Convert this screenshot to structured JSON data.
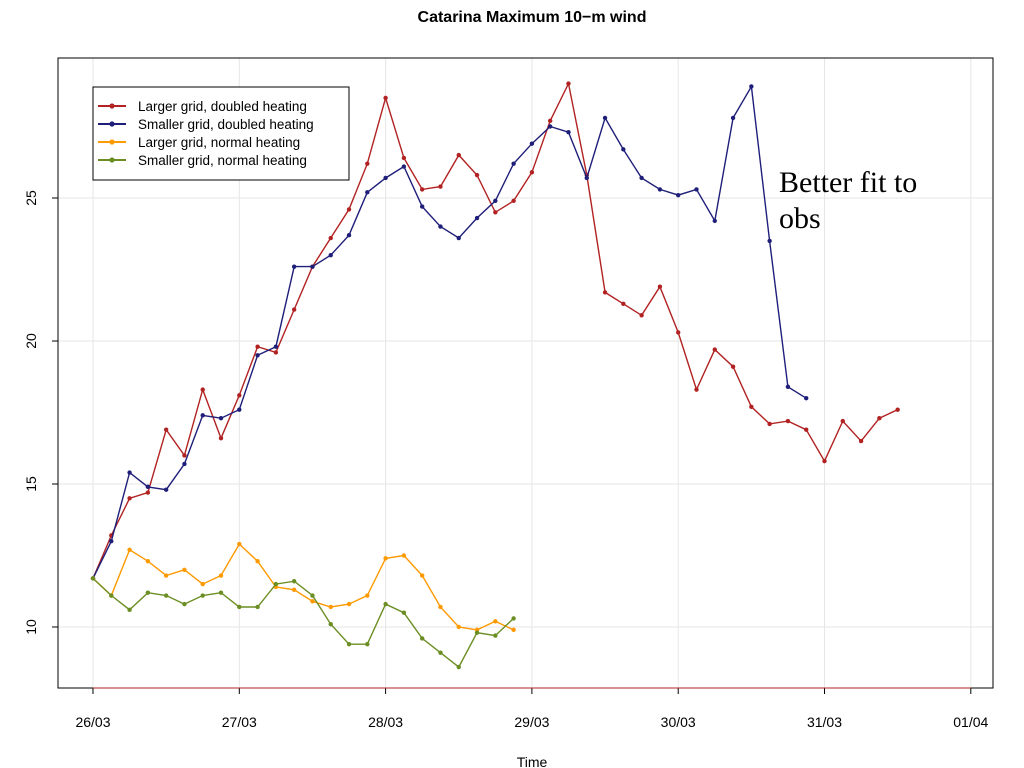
{
  "chart_data": {
    "type": "line",
    "title": "Catarina Maximum 10−m wind",
    "xlabel": "Time",
    "ylabel": "",
    "x_ticks": [
      "26/03",
      "27/03",
      "28/03",
      "29/03",
      "30/03",
      "31/03",
      "01/04"
    ],
    "y_ticks": [
      10,
      15,
      20,
      25
    ],
    "xlim": [
      0,
      6.05
    ],
    "ylim": [
      7.9,
      29.8
    ],
    "grid": true,
    "legend_position": "top-left",
    "annotation": "Better fit to obs",
    "series": [
      {
        "name": "Larger grid, doubled heating",
        "color": "#b22222",
        "x": [
          0,
          0.125,
          0.25,
          0.375,
          0.5,
          0.625,
          0.75,
          0.875,
          1.0,
          1.125,
          1.25,
          1.375,
          1.5,
          1.625,
          1.75,
          1.875,
          2.0,
          2.125,
          2.25,
          2.375,
          2.5,
          2.625,
          2.75,
          2.875,
          3.0,
          3.125,
          3.25,
          3.375,
          3.5,
          3.625,
          3.75,
          3.875,
          4.0,
          4.125,
          4.25,
          4.375,
          4.5,
          4.625,
          4.75,
          4.875,
          5.0,
          5.125,
          5.25,
          5.375,
          5.5
        ],
        "y": [
          11.7,
          13.2,
          14.5,
          14.7,
          16.9,
          16.0,
          18.3,
          16.6,
          18.1,
          19.8,
          19.6,
          21.1,
          22.6,
          23.6,
          24.6,
          26.2,
          28.5,
          26.4,
          25.3,
          25.4,
          26.5,
          25.8,
          24.5,
          24.9,
          25.9,
          27.7,
          29.0,
          25.8,
          21.7,
          21.3,
          20.9,
          21.9,
          20.3,
          18.3,
          19.7,
          19.1,
          17.7,
          17.1,
          17.2,
          16.9,
          15.8,
          17.2,
          16.5,
          17.3,
          17.6
        ]
      },
      {
        "name": "Smaller grid, doubled heating",
        "color": "#1f1f7a",
        "x": [
          0,
          0.125,
          0.25,
          0.375,
          0.5,
          0.625,
          0.75,
          0.875,
          1.0,
          1.125,
          1.25,
          1.375,
          1.5,
          1.625,
          1.75,
          1.875,
          2.0,
          2.125,
          2.25,
          2.375,
          2.5,
          2.625,
          2.75,
          2.875,
          3.0,
          3.125,
          3.25,
          3.375,
          3.5,
          3.625,
          3.75,
          3.875,
          4.0,
          4.125,
          4.25,
          4.375,
          4.5,
          4.625,
          4.75,
          4.875
        ],
        "y": [
          11.7,
          13.0,
          15.4,
          14.9,
          14.8,
          15.7,
          17.4,
          17.3,
          17.6,
          19.5,
          19.8,
          22.6,
          22.6,
          23.0,
          23.7,
          25.2,
          25.7,
          26.1,
          24.7,
          24.0,
          23.6,
          24.3,
          24.9,
          26.2,
          26.9,
          27.5,
          27.3,
          25.7,
          27.8,
          26.7,
          25.7,
          25.3,
          25.1,
          25.3,
          24.2,
          27.8,
          28.9,
          23.5,
          18.4,
          18.0
        ]
      },
      {
        "name": "Larger grid, normal heating",
        "color": "#ff9900",
        "x": [
          0,
          0.125,
          0.25,
          0.375,
          0.5,
          0.625,
          0.75,
          0.875,
          1.0,
          1.125,
          1.25,
          1.375,
          1.5,
          1.625,
          1.75,
          1.875,
          2.0,
          2.125,
          2.25,
          2.375,
          2.5,
          2.625,
          2.75,
          2.875
        ],
        "y": [
          11.7,
          11.1,
          12.7,
          12.3,
          11.8,
          12.0,
          11.5,
          11.8,
          12.9,
          12.3,
          11.4,
          11.3,
          10.9,
          10.7,
          10.8,
          11.1,
          12.4,
          12.5,
          11.8,
          10.7,
          10.0,
          9.9,
          10.2,
          9.9
        ]
      },
      {
        "name": "Smaller grid, normal heating",
        "color": "#6b8e23",
        "x": [
          0,
          0.125,
          0.25,
          0.375,
          0.5,
          0.625,
          0.75,
          0.875,
          1.0,
          1.125,
          1.25,
          1.375,
          1.5,
          1.625,
          1.75,
          1.875,
          2.0,
          2.125,
          2.25,
          2.375,
          2.5,
          2.625,
          2.75,
          2.875
        ],
        "y": [
          11.7,
          11.1,
          10.6,
          11.2,
          11.1,
          10.8,
          11.1,
          11.2,
          10.7,
          10.7,
          11.5,
          11.6,
          11.1,
          10.1,
          9.4,
          9.4,
          10.8,
          10.5,
          9.6,
          9.1,
          8.6,
          9.8,
          9.7,
          10.3
        ]
      }
    ]
  }
}
